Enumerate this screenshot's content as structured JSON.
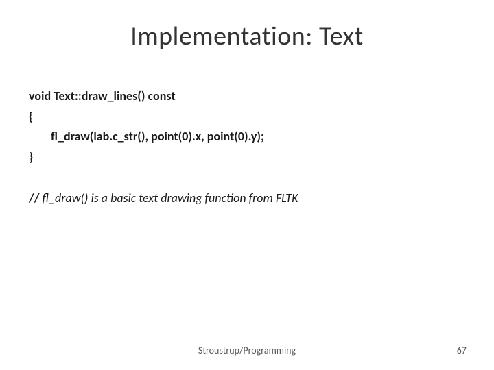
{
  "slide": {
    "title": "Implementation: Text",
    "code": {
      "line1": "void Text::draw_lines() const",
      "line2": "{",
      "line3": "fl_draw(lab.c_str(), point(0).x, point(0).y);",
      "line4": "}"
    },
    "comment": {
      "slashes": "//",
      "text": " fl_draw() is a basic text drawing function from FLTK"
    },
    "footer": "Stroustrup/Programming",
    "pageNumber": "67"
  },
  "style": {
    "background_color": "#ffffff",
    "title_color": "#333333",
    "title_fontsize": 38,
    "body_color": "#1a1a1a",
    "body_fontsize": 18,
    "footer_color": "#555555",
    "footer_fontsize": 14
  }
}
